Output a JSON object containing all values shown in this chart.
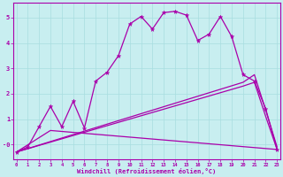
{
  "xlabel": "Windchill (Refroidissement éolien,°C)",
  "bg_color": "#c8eef0",
  "line_color": "#aa00aa",
  "grid_color": "#a8dde0",
  "ylim": [
    -0.6,
    5.6
  ],
  "xlim": [
    -0.3,
    23.3
  ],
  "yticks": [
    0,
    1,
    2,
    3,
    4,
    5
  ],
  "ytick_labels": [
    "-0",
    "1",
    "2",
    "3",
    "4",
    "5"
  ],
  "xticks": [
    0,
    1,
    2,
    3,
    4,
    5,
    6,
    7,
    8,
    9,
    10,
    11,
    12,
    13,
    14,
    15,
    16,
    17,
    18,
    19,
    20,
    21,
    22,
    23
  ],
  "wavy_x": [
    0,
    1,
    2,
    3,
    4,
    5,
    6,
    7,
    8,
    9,
    10,
    11,
    12,
    13,
    14,
    15,
    16,
    17,
    18,
    19,
    20,
    21,
    22,
    23
  ],
  "wavy_y": [
    -0.3,
    -0.1,
    0.7,
    1.5,
    0.7,
    1.7,
    0.65,
    2.5,
    2.85,
    3.5,
    4.75,
    5.05,
    4.55,
    5.2,
    5.25,
    5.1,
    4.1,
    4.35,
    5.05,
    4.25,
    2.75,
    2.5,
    1.4,
    -0.2
  ],
  "line1_x": [
    0,
    20,
    21,
    22,
    23
  ],
  "line1_y": [
    -0.3,
    2.45,
    2.75,
    1.35,
    -0.1
  ],
  "line2_x": [
    0,
    20,
    21,
    22,
    23
  ],
  "line2_y": [
    -0.3,
    2.3,
    2.45,
    1.1,
    -0.2
  ],
  "line3_x": [
    0,
    3,
    23
  ],
  "line3_y": [
    -0.3,
    0.55,
    -0.2
  ]
}
